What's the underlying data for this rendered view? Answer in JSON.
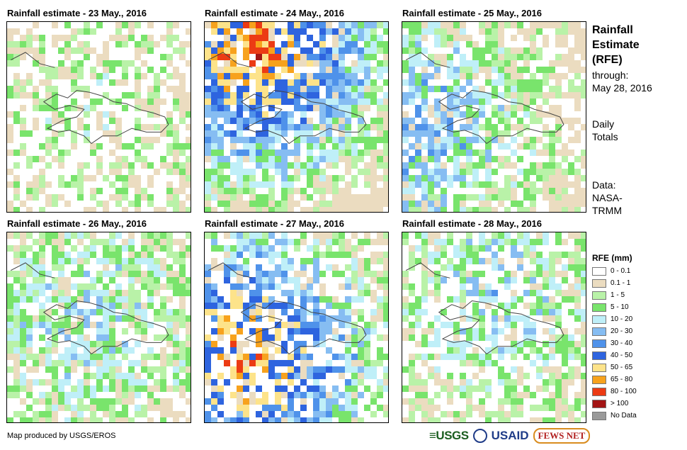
{
  "panels": [
    {
      "title": "Rainfall estimate - 23 May., 2016",
      "seed": 23,
      "intensity": 0.2,
      "wet": 0.45,
      "hotspot": [
        0.45,
        0.45
      ]
    },
    {
      "title": "Rainfall estimate - 24 May., 2016",
      "seed": 24,
      "intensity": 0.85,
      "wet": 0.75,
      "hotspot": [
        0.25,
        0.1
      ]
    },
    {
      "title": "Rainfall estimate - 25 May., 2016",
      "seed": 25,
      "intensity": 0.45,
      "wet": 0.65,
      "hotspot": [
        0.05,
        0.55
      ]
    },
    {
      "title": "Rainfall estimate - 26 May., 2016",
      "seed": 26,
      "intensity": 0.35,
      "wet": 0.65,
      "hotspot": [
        0.4,
        0.45
      ]
    },
    {
      "title": "Rainfall estimate - 27 May., 2016",
      "seed": 27,
      "intensity": 0.8,
      "wet": 0.6,
      "hotspot": [
        0.2,
        0.65
      ]
    },
    {
      "title": "Rainfall estimate - 28 May., 2016",
      "seed": 28,
      "intensity": 0.35,
      "wet": 0.55,
      "hotspot": [
        0.5,
        0.3
      ]
    }
  ],
  "side": {
    "title_lines": [
      "Rainfall",
      "Estimate",
      "(RFE)"
    ],
    "through": "through:",
    "date": "May 28, 2016",
    "daily": "Daily",
    "totals": "Totals",
    "data_label": "Data:",
    "data_source_1": "NASA-",
    "data_source_2": "TRMM"
  },
  "legend": {
    "title": "RFE (mm)",
    "items": [
      {
        "label": "0 - 0.1",
        "color": "#ffffff"
      },
      {
        "label": "0.1 - 1",
        "color": "#ebdcc0"
      },
      {
        "label": "1 - 5",
        "color": "#b9f2a8"
      },
      {
        "label": "5 - 10",
        "color": "#79e46c"
      },
      {
        "label": "10 - 20",
        "color": "#bfeff8"
      },
      {
        "label": "20 - 30",
        "color": "#86bdf2"
      },
      {
        "label": "30 - 40",
        "color": "#4f92ea"
      },
      {
        "label": "40 - 50",
        "color": "#2e64df"
      },
      {
        "label": "50 - 65",
        "color": "#fde38a"
      },
      {
        "label": "65 - 80",
        "color": "#f7a21d"
      },
      {
        "label": "80 - 100",
        "color": "#ec3b14"
      },
      {
        "label": "> 100",
        "color": "#a31515"
      },
      {
        "label": "No Data",
        "color": "#9a9a9a"
      }
    ]
  },
  "footer": {
    "credit": "Map produced by USGS/EROS",
    "logo_usgs": "≡USGS",
    "logo_usaid": "USAID",
    "logo_fews": "FEWS NET"
  }
}
